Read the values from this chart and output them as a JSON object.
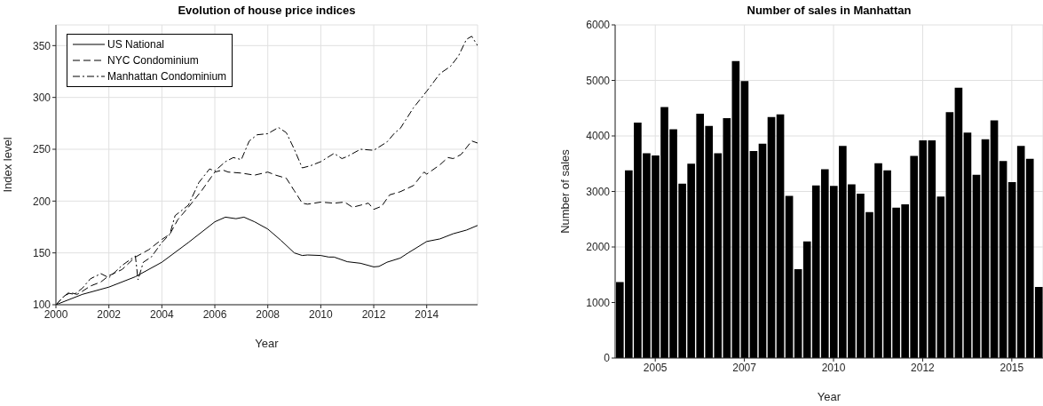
{
  "chart_data": [
    {
      "type": "line",
      "title": "Evolution of house price indices",
      "xlabel": "Year",
      "ylabel": "Index level",
      "xlim": [
        2000,
        2015.92
      ],
      "xticks": [
        2000,
        2002,
        2004,
        2006,
        2008,
        2010,
        2012,
        2014
      ],
      "ylim": [
        100,
        370
      ],
      "yticks": [
        100,
        150,
        200,
        250,
        300,
        350
      ],
      "grid": true,
      "legend": "top left",
      "series": [
        {
          "name": "US National",
          "color": "#000000",
          "line_style": "solid",
          "x": [
            2000,
            2001,
            2002,
            2003,
            2004,
            2005,
            2006,
            2006.4,
            2006.8,
            2007.1,
            2007.5,
            2008,
            2008.5,
            2009,
            2009.3,
            2009.5,
            2010,
            2010.3,
            2010.5,
            2011,
            2011.5,
            2012,
            2012.2,
            2012.5,
            2013,
            2013.3,
            2014,
            2014.5,
            2015,
            2015.5,
            2015.92
          ],
          "values": [
            100,
            110,
            117,
            127,
            141,
            160,
            180,
            184.5,
            183,
            184.5,
            180,
            173,
            162,
            150,
            147.5,
            148,
            147.5,
            146,
            146,
            141.5,
            140,
            136.5,
            137,
            141,
            145,
            150,
            161,
            163.5,
            168.5,
            172,
            176.5
          ]
        },
        {
          "name": "NYC Condominium",
          "color": "#000000",
          "line_style": "dashed",
          "x": [
            2000,
            2000.3,
            2000.5,
            2000.8,
            2001,
            2001.3,
            2001.7,
            2002,
            2002.5,
            2003,
            2003.5,
            2004,
            2004.3,
            2004.6,
            2005,
            2005.5,
            2006,
            2006.3,
            2006.5,
            2007,
            2007.5,
            2008,
            2008.3,
            2008.7,
            2009,
            2009.3,
            2009.5,
            2010,
            2010.5,
            2010.9,
            2011.2,
            2011.5,
            2011.8,
            2012,
            2012.3,
            2012.6,
            2013,
            2013.5,
            2013.9,
            2014,
            2014.5,
            2014.8,
            2015,
            2015.3,
            2015.7,
            2015.92
          ],
          "values": [
            100,
            108,
            112,
            110,
            113,
            118,
            122,
            128,
            134,
            146,
            153,
            163,
            168,
            182,
            194,
            210,
            228,
            230,
            228,
            227,
            225,
            228,
            225,
            222,
            210,
            198,
            197,
            199,
            198,
            199,
            194,
            196,
            198,
            192,
            195,
            206,
            209,
            215,
            228,
            226,
            235,
            242,
            241,
            245,
            258,
            256
          ]
        },
        {
          "name": "Manhattan Condominium",
          "color": "#000000",
          "line_style": "dashdot",
          "x": [
            2000,
            2000.3,
            2000.5,
            2000.7,
            2001,
            2001.3,
            2001.7,
            2002,
            2002.5,
            2003,
            2003.1,
            2003.3,
            2003.6,
            2004,
            2004.3,
            2004.5,
            2005,
            2005.4,
            2005.8,
            2006,
            2006.4,
            2006.7,
            2007,
            2007.3,
            2007.6,
            2008,
            2008.4,
            2008.7,
            2009,
            2009.3,
            2009.6,
            2010,
            2010.5,
            2010.8,
            2011,
            2011.5,
            2012,
            2012.5,
            2012.8,
            2013,
            2013.2,
            2013.5,
            2014,
            2014.5,
            2014.9,
            2015.2,
            2015.5,
            2015.7,
            2015.92
          ],
          "values": [
            100,
            108,
            111,
            110,
            116,
            125,
            130,
            126,
            138,
            147,
            124,
            141,
            146,
            160,
            168,
            186,
            196,
            218,
            231,
            229,
            238,
            242,
            240,
            258,
            264,
            265,
            271,
            266,
            250,
            232,
            234,
            238,
            246,
            241,
            243,
            250,
            249,
            257,
            266,
            270,
            278,
            290,
            306,
            323,
            330,
            340,
            356,
            359,
            350
          ]
        }
      ]
    },
    {
      "type": "bar",
      "title": "Number of sales in Manhattan",
      "xlabel": "Year",
      "ylabel": "Number of sales",
      "color": "#000000",
      "xlim": [
        2003.875,
        2015.875
      ],
      "xticks": [
        {
          "value": 2005,
          "label": "2005"
        },
        {
          "value": 2007.5,
          "label": "2007"
        },
        {
          "value": 2010,
          "label": "2010"
        },
        {
          "value": 2012.5,
          "label": "2012"
        },
        {
          "value": 2015,
          "label": "2015"
        }
      ],
      "ylim": [
        0,
        6000
      ],
      "yticks": [
        0,
        1000,
        2000,
        3000,
        4000,
        5000,
        6000
      ],
      "grid": true,
      "x": [
        2004,
        2004.25,
        2004.5,
        2004.75,
        2005,
        2005.25,
        2005.5,
        2005.75,
        2006,
        2006.25,
        2006.5,
        2006.75,
        2007,
        2007.25,
        2007.5,
        2007.75,
        2008,
        2008.25,
        2008.5,
        2008.75,
        2009,
        2009.25,
        2009.5,
        2009.75,
        2010,
        2010.25,
        2010.5,
        2010.75,
        2011,
        2011.25,
        2011.5,
        2011.75,
        2012,
        2012.25,
        2012.5,
        2012.75,
        2013,
        2013.25,
        2013.5,
        2013.75,
        2014,
        2014.25,
        2014.5,
        2014.75,
        2015,
        2015.25,
        2015.5,
        2015.75
      ],
      "values": [
        1370,
        3380,
        4240,
        3690,
        3650,
        4520,
        4120,
        3140,
        3500,
        4400,
        4180,
        3690,
        4320,
        5350,
        4990,
        3730,
        3860,
        4340,
        4390,
        2920,
        1600,
        2100,
        3110,
        3400,
        3100,
        3820,
        3130,
        2960,
        2630,
        3510,
        3380,
        2710,
        2770,
        3640,
        3920,
        3920,
        2910,
        4430,
        4870,
        4060,
        3300,
        3940,
        4280,
        3550,
        3170,
        3820,
        3590,
        1280
      ]
    }
  ]
}
